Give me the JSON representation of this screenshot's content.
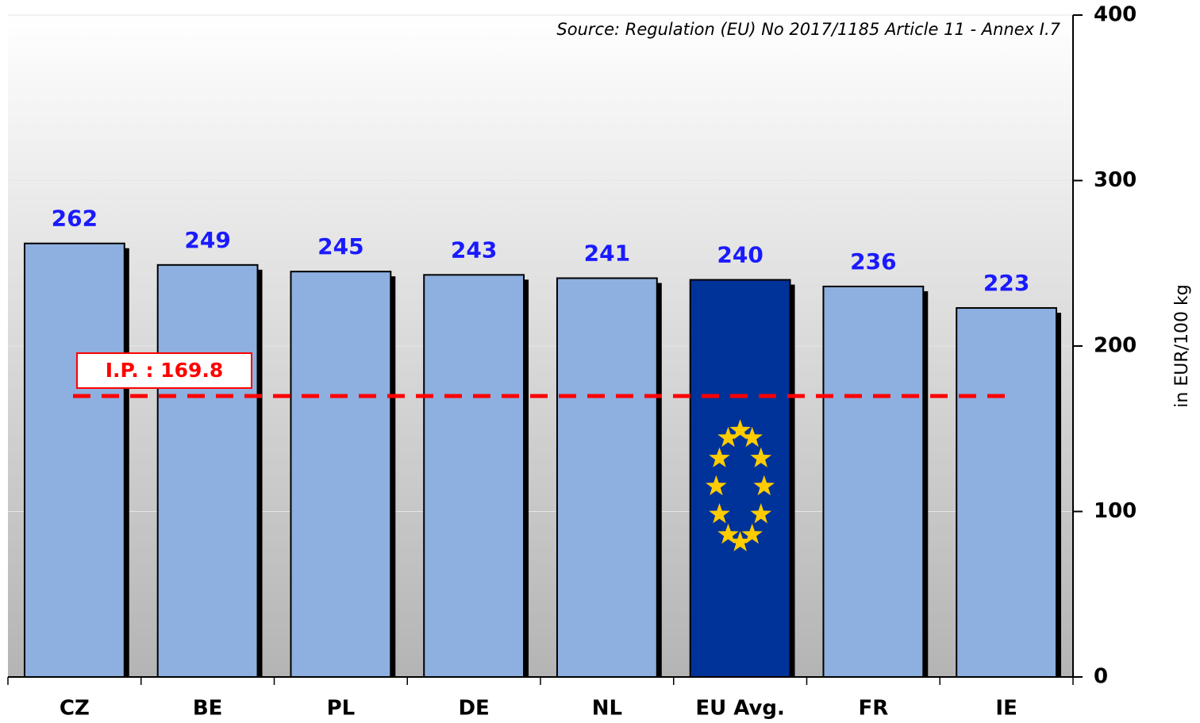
{
  "chart_data": {
    "type": "bar",
    "source": "Source: Regulation (EU) No 2017/1185 Article 11 - Annex I.7",
    "y_label": "in EUR/100 kg",
    "categories": [
      "CZ",
      "BE",
      "PL",
      "DE",
      "NL",
      "EU Avg.",
      "FR",
      "IE"
    ],
    "values": [
      262,
      249,
      245,
      243,
      241,
      240,
      236,
      223
    ],
    "colors": [
      "#8db0e0",
      "#8db0e0",
      "#8db0e0",
      "#8db0e0",
      "#8db0e0",
      "#003399",
      "#8db0e0",
      "#8db0e0"
    ],
    "ylim": [
      0,
      400
    ],
    "yticks": [
      0,
      100,
      200,
      300,
      400
    ],
    "grid": true,
    "reference_line": {
      "value": 169.8,
      "label": "I.P. : 169.8",
      "color": "#ff0000"
    }
  }
}
